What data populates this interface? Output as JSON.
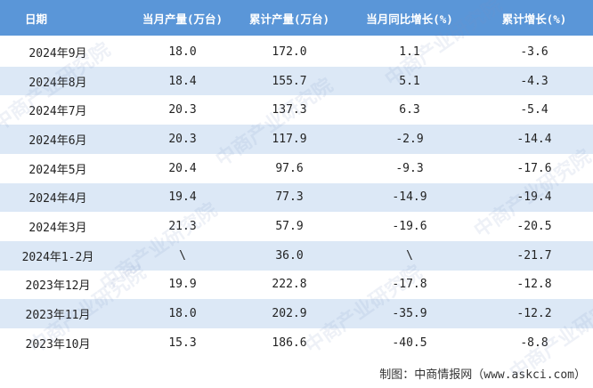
{
  "table": {
    "header": [
      "日期",
      "当月产量(万台)",
      "累计产量(万台)",
      "当月同比增长(%)",
      "累计增长(%)"
    ],
    "rows": [
      [
        "2024年9月",
        "18.0",
        "172.0",
        "1.1",
        "-3.6"
      ],
      [
        "2024年8月",
        "18.4",
        "155.7",
        "5.1",
        "-4.3"
      ],
      [
        "2024年7月",
        "20.3",
        "137.3",
        "6.3",
        "-5.4"
      ],
      [
        "2024年6月",
        "20.3",
        "117.9",
        "-2.9",
        "-14.4"
      ],
      [
        "2024年5月",
        "20.4",
        "97.6",
        "-9.3",
        "-17.6"
      ],
      [
        "2024年4月",
        "19.4",
        "77.3",
        "-14.9",
        "-19.4"
      ],
      [
        "2024年3月",
        "21.3",
        "57.9",
        "-19.6",
        "-20.5"
      ],
      [
        "2024年1-2月",
        "\\",
        "36.0",
        "\\",
        "-21.7"
      ],
      [
        "2023年12月",
        "19.9",
        "222.8",
        "-17.8",
        "-12.8"
      ],
      [
        "2023年11月",
        "18.0",
        "202.9",
        "-35.9",
        "-12.2"
      ],
      [
        "2023年10月",
        "15.3",
        "186.6",
        "-40.5",
        "-8.8"
      ]
    ]
  },
  "footer": "制图：中商情报网（www.askci.com）",
  "watermark": "中商产业研究院"
}
